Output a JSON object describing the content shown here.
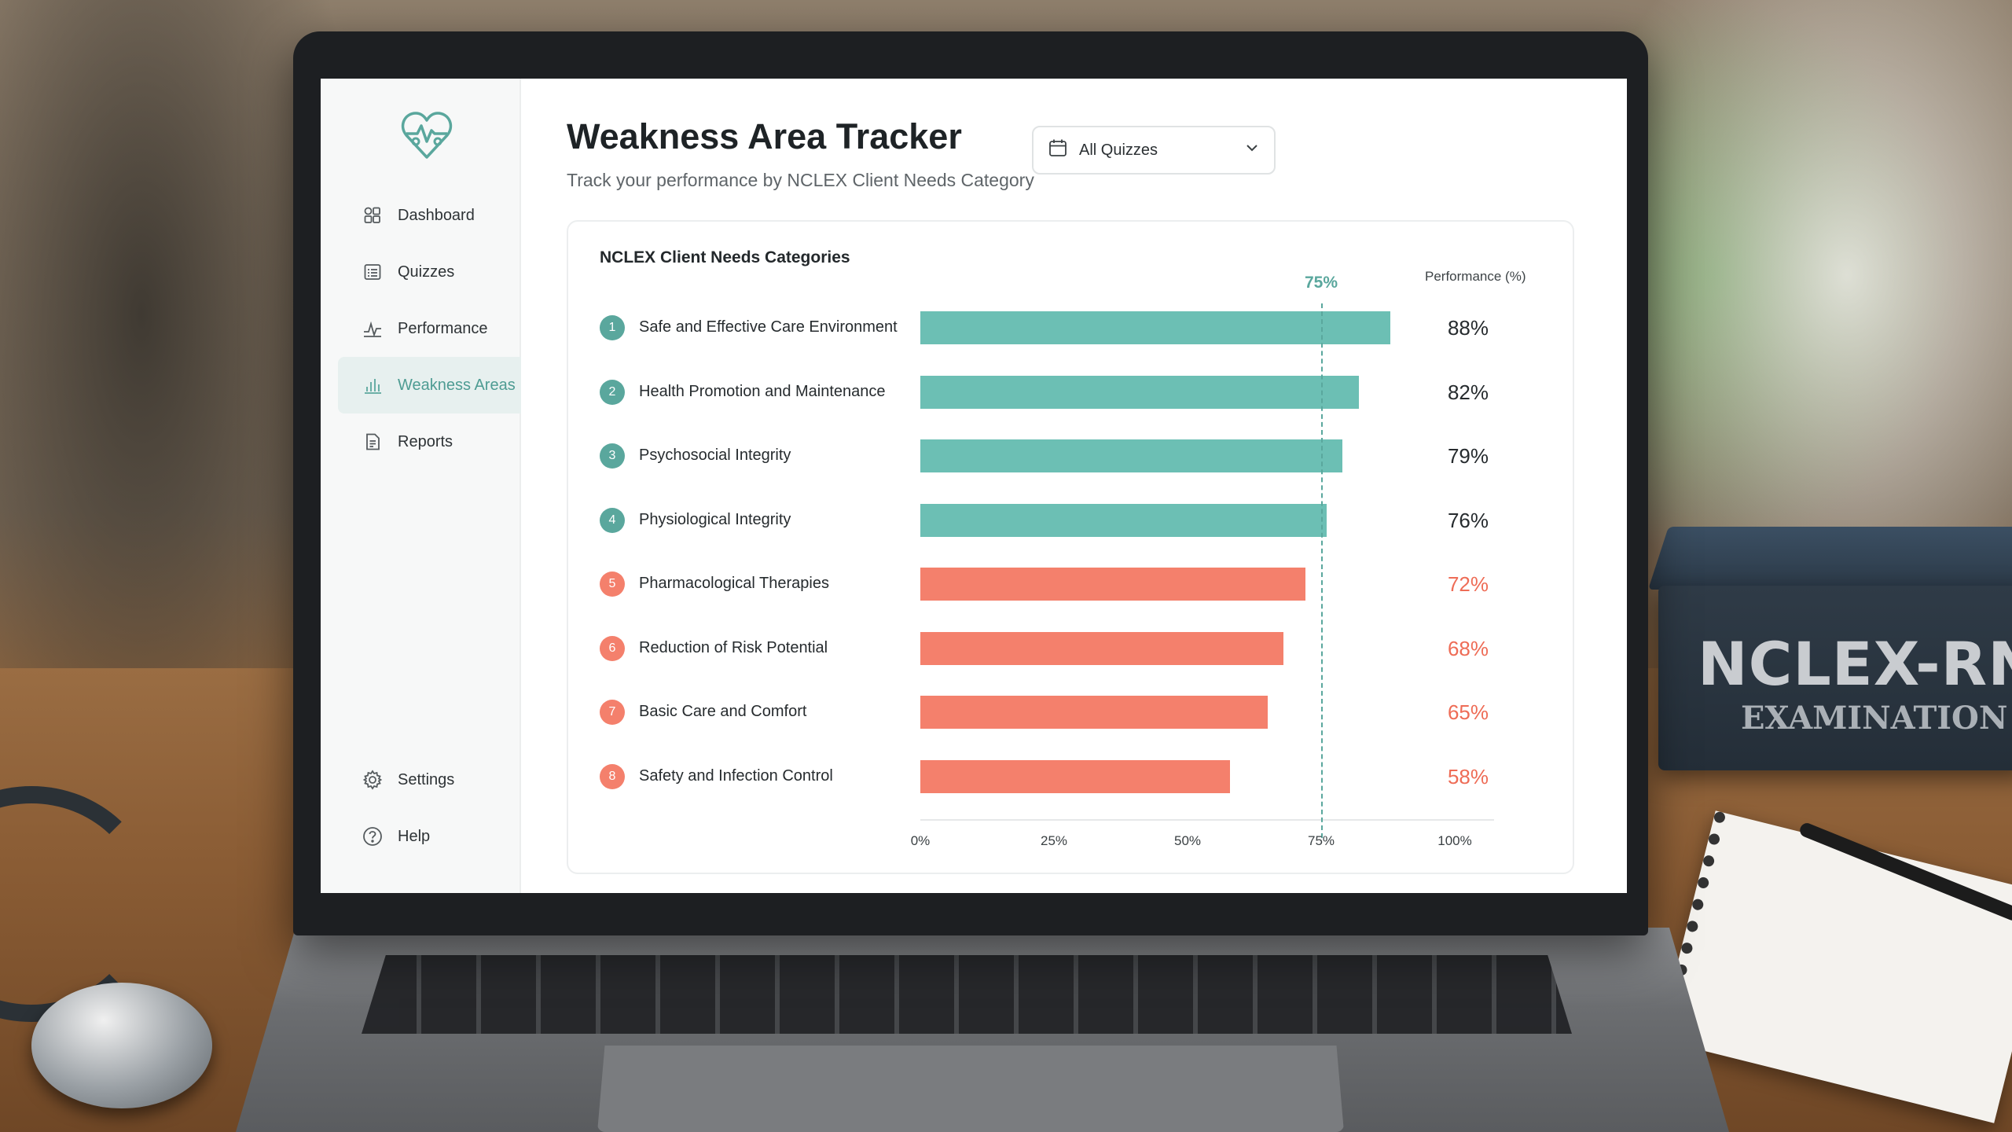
{
  "sidebar": {
    "items": [
      {
        "label": "Dashboard",
        "icon": "dashboard-icon"
      },
      {
        "label": "Quizzes",
        "icon": "quizzes-icon"
      },
      {
        "label": "Performance",
        "icon": "performance-icon"
      },
      {
        "label": "Weakness Areas",
        "icon": "bar-chart-icon",
        "active": true
      },
      {
        "label": "Reports",
        "icon": "reports-icon"
      }
    ],
    "bottom_items": [
      {
        "label": "Settings",
        "icon": "gear-icon"
      },
      {
        "label": "Help",
        "icon": "help-icon"
      }
    ]
  },
  "header": {
    "title": "Weakness Area Tracker",
    "subtitle": "Track your performance by NCLEX Client Needs Category",
    "filter": {
      "value": "All Quizzes",
      "icon": "calendar-icon"
    }
  },
  "background": {
    "book_title": "NCLEX-RN",
    "book_subtitle": "EXAMINATION"
  },
  "colors": {
    "strong": "#6cbfb4",
    "weak": "#f4806c",
    "accent": "#5aa79d",
    "strong_text": "#262b2e",
    "weak_text": "#ee6c56"
  },
  "chart_data": {
    "type": "bar",
    "orientation": "horizontal",
    "title": "NCLEX Client Needs Categories",
    "value_label": "Performance (%)",
    "target": {
      "value": 75,
      "label": "75%"
    },
    "xlim": [
      0,
      100
    ],
    "ticks": [
      "0%",
      "25%",
      "50%",
      "75%",
      "100%"
    ],
    "categories": [
      "Safe and Effective Care Environment",
      "Health Promotion and Maintenance",
      "Psychosocial Integrity",
      "Physiological Integrity",
      "Pharmacological Therapies",
      "Reduction of Risk Potential",
      "Basic Care and Comfort",
      "Safety and Infection Control"
    ],
    "numbers": [
      "1",
      "2",
      "3",
      "4",
      "5",
      "6",
      "7",
      "8"
    ],
    "values": [
      88,
      82,
      79,
      76,
      72,
      68,
      65,
      58
    ],
    "labels": [
      "88%",
      "82%",
      "79%",
      "76%",
      "72%",
      "68%",
      "65%",
      "58%"
    ]
  }
}
